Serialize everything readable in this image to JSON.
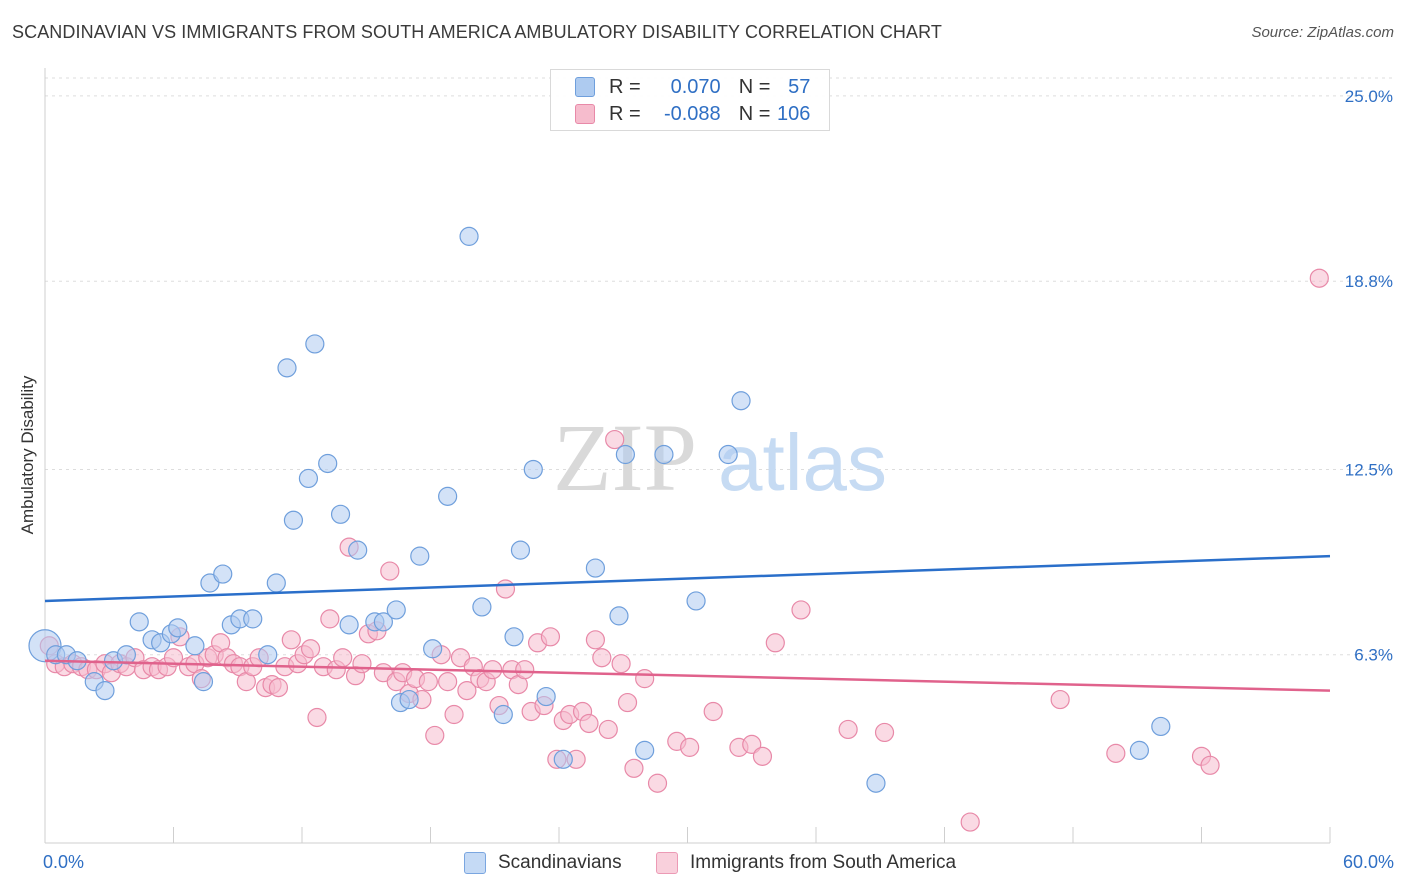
{
  "header": {
    "title": "SCANDINAVIAN VS IMMIGRANTS FROM SOUTH AMERICA AMBULATORY DISABILITY CORRELATION CHART",
    "source": "Source: ZipAtlas.com"
  },
  "watermark": {
    "zip": "ZIP",
    "atlas": "atlas"
  },
  "legend_box": {
    "rows": [
      {
        "r_label": "R =",
        "r_value": "0.070",
        "n_label": "N =",
        "n_value": "57"
      },
      {
        "r_label": "R =",
        "r_value": "-0.088",
        "n_label": "N =",
        "n_value": "106"
      }
    ]
  },
  "colors": {
    "blue_fill": "#aecbf0",
    "blue_stroke": "#6f9fdc",
    "blue_line": "#2a6fca",
    "pink_fill": "#f6bccd",
    "pink_stroke": "#e889a8",
    "pink_line": "#e0628c",
    "grid": "#dddddd",
    "tick_label": "#2f6fc4"
  },
  "chart_data": {
    "type": "scatter",
    "title": "SCANDINAVIAN VS IMMIGRANTS FROM SOUTH AMERICA AMBULATORY DISABILITY CORRELATION CHART",
    "xlabel": "",
    "ylabel": "Ambulatory Disability",
    "xlim": [
      0,
      60
    ],
    "ylim": [
      0,
      25.6
    ],
    "x_tick_labels": [
      "0.0%",
      "60.0%"
    ],
    "y_ticks": [
      6.3,
      12.5,
      18.8,
      25.0
    ],
    "y_tick_labels": [
      "6.3%",
      "12.5%",
      "18.8%",
      "25.0%"
    ],
    "grid": true,
    "legend_position": "top-center",
    "series": [
      {
        "name": "Scandinavians",
        "r": 0.07,
        "n": 57,
        "trend": {
          "x": [
            0,
            60
          ],
          "y": [
            8.1,
            9.6
          ]
        },
        "points": [
          [
            0.0,
            6.6
          ],
          [
            0.5,
            6.3
          ],
          [
            1.0,
            6.3
          ],
          [
            1.5,
            6.1
          ],
          [
            2.3,
            5.4
          ],
          [
            2.8,
            5.1
          ],
          [
            3.2,
            6.1
          ],
          [
            3.8,
            6.3
          ],
          [
            4.4,
            7.4
          ],
          [
            5.0,
            6.8
          ],
          [
            5.4,
            6.7
          ],
          [
            5.9,
            7.0
          ],
          [
            6.2,
            7.2
          ],
          [
            7.0,
            6.6
          ],
          [
            7.4,
            5.4
          ],
          [
            7.7,
            8.7
          ],
          [
            8.3,
            9.0
          ],
          [
            8.7,
            7.3
          ],
          [
            9.1,
            7.5
          ],
          [
            9.7,
            7.5
          ],
          [
            10.4,
            6.3
          ],
          [
            10.8,
            8.7
          ],
          [
            11.3,
            15.9
          ],
          [
            11.6,
            10.8
          ],
          [
            12.3,
            12.2
          ],
          [
            12.6,
            16.7
          ],
          [
            13.2,
            12.7
          ],
          [
            13.8,
            11.0
          ],
          [
            14.2,
            7.3
          ],
          [
            14.6,
            9.8
          ],
          [
            15.4,
            7.4
          ],
          [
            15.8,
            7.4
          ],
          [
            16.4,
            7.8
          ],
          [
            16.6,
            4.7
          ],
          [
            17.0,
            4.8
          ],
          [
            17.5,
            9.6
          ],
          [
            18.1,
            6.5
          ],
          [
            18.8,
            11.6
          ],
          [
            19.8,
            20.3
          ],
          [
            20.4,
            7.9
          ],
          [
            21.4,
            4.3
          ],
          [
            21.9,
            6.9
          ],
          [
            22.2,
            9.8
          ],
          [
            22.8,
            12.5
          ],
          [
            23.4,
            4.9
          ],
          [
            24.2,
            2.8
          ],
          [
            25.7,
            9.2
          ],
          [
            26.8,
            7.6
          ],
          [
            27.1,
            13.0
          ],
          [
            28.0,
            3.1
          ],
          [
            28.9,
            13.0
          ],
          [
            30.4,
            8.1
          ],
          [
            31.9,
            13.0
          ],
          [
            32.5,
            14.8
          ],
          [
            38.8,
            2.0
          ],
          [
            51.1,
            3.1
          ],
          [
            52.1,
            3.9
          ]
        ]
      },
      {
        "name": "Immigrants from South America",
        "r": -0.088,
        "n": 106,
        "trend": {
          "x": [
            0,
            60
          ],
          "y": [
            6.1,
            5.1
          ]
        },
        "points": [
          [
            0.2,
            6.6
          ],
          [
            0.5,
            6.0
          ],
          [
            0.9,
            5.9
          ],
          [
            1.3,
            6.0
          ],
          [
            1.7,
            5.9
          ],
          [
            2.0,
            5.8
          ],
          [
            2.4,
            5.8
          ],
          [
            2.8,
            6.0
          ],
          [
            3.1,
            5.7
          ],
          [
            3.5,
            6.0
          ],
          [
            3.8,
            5.9
          ],
          [
            4.2,
            6.2
          ],
          [
            4.6,
            5.8
          ],
          [
            5.0,
            5.9
          ],
          [
            5.3,
            5.8
          ],
          [
            5.7,
            5.9
          ],
          [
            6.0,
            6.2
          ],
          [
            6.3,
            6.9
          ],
          [
            6.7,
            5.9
          ],
          [
            7.0,
            6.0
          ],
          [
            7.3,
            5.5
          ],
          [
            7.6,
            6.2
          ],
          [
            7.9,
            6.3
          ],
          [
            8.2,
            6.7
          ],
          [
            8.5,
            6.2
          ],
          [
            8.8,
            6.0
          ],
          [
            9.1,
            5.9
          ],
          [
            9.4,
            5.4
          ],
          [
            9.7,
            5.9
          ],
          [
            10.0,
            6.2
          ],
          [
            10.3,
            5.2
          ],
          [
            10.6,
            5.3
          ],
          [
            10.9,
            5.2
          ],
          [
            11.2,
            5.9
          ],
          [
            11.5,
            6.8
          ],
          [
            11.8,
            6.0
          ],
          [
            12.1,
            6.3
          ],
          [
            12.4,
            6.5
          ],
          [
            12.7,
            4.2
          ],
          [
            13.0,
            5.9
          ],
          [
            13.3,
            7.5
          ],
          [
            13.6,
            5.8
          ],
          [
            13.9,
            6.2
          ],
          [
            14.2,
            9.9
          ],
          [
            14.5,
            5.6
          ],
          [
            14.8,
            6.0
          ],
          [
            15.1,
            7.0
          ],
          [
            15.5,
            7.1
          ],
          [
            15.8,
            5.7
          ],
          [
            16.1,
            9.1
          ],
          [
            16.4,
            5.4
          ],
          [
            16.7,
            5.7
          ],
          [
            17.0,
            5.0
          ],
          [
            17.3,
            5.5
          ],
          [
            17.6,
            4.8
          ],
          [
            17.9,
            5.4
          ],
          [
            18.2,
            3.6
          ],
          [
            18.5,
            6.3
          ],
          [
            18.8,
            5.4
          ],
          [
            19.1,
            4.3
          ],
          [
            19.4,
            6.2
          ],
          [
            19.7,
            5.1
          ],
          [
            20.0,
            5.9
          ],
          [
            20.3,
            5.5
          ],
          [
            20.6,
            5.4
          ],
          [
            20.9,
            5.8
          ],
          [
            21.2,
            4.6
          ],
          [
            21.5,
            8.5
          ],
          [
            21.8,
            5.8
          ],
          [
            22.1,
            5.3
          ],
          [
            22.4,
            5.8
          ],
          [
            22.7,
            4.4
          ],
          [
            23.0,
            6.7
          ],
          [
            23.3,
            4.6
          ],
          [
            23.6,
            6.9
          ],
          [
            23.9,
            2.8
          ],
          [
            24.2,
            4.1
          ],
          [
            24.5,
            4.3
          ],
          [
            24.8,
            2.8
          ],
          [
            25.1,
            4.4
          ],
          [
            25.4,
            4.0
          ],
          [
            25.7,
            6.8
          ],
          [
            26.0,
            6.2
          ],
          [
            26.3,
            3.8
          ],
          [
            26.6,
            13.5
          ],
          [
            26.9,
            6.0
          ],
          [
            27.2,
            4.7
          ],
          [
            27.5,
            2.5
          ],
          [
            28.0,
            5.5
          ],
          [
            28.6,
            2.0
          ],
          [
            29.5,
            3.4
          ],
          [
            30.1,
            3.2
          ],
          [
            31.2,
            4.4
          ],
          [
            32.4,
            3.2
          ],
          [
            33.0,
            3.3
          ],
          [
            33.5,
            2.9
          ],
          [
            34.1,
            6.7
          ],
          [
            35.3,
            7.8
          ],
          [
            37.5,
            3.8
          ],
          [
            39.2,
            3.7
          ],
          [
            43.2,
            0.7
          ],
          [
            47.4,
            4.8
          ],
          [
            50.0,
            3.0
          ],
          [
            54.0,
            2.9
          ],
          [
            54.4,
            2.6
          ],
          [
            59.5,
            18.9
          ]
        ]
      }
    ]
  }
}
